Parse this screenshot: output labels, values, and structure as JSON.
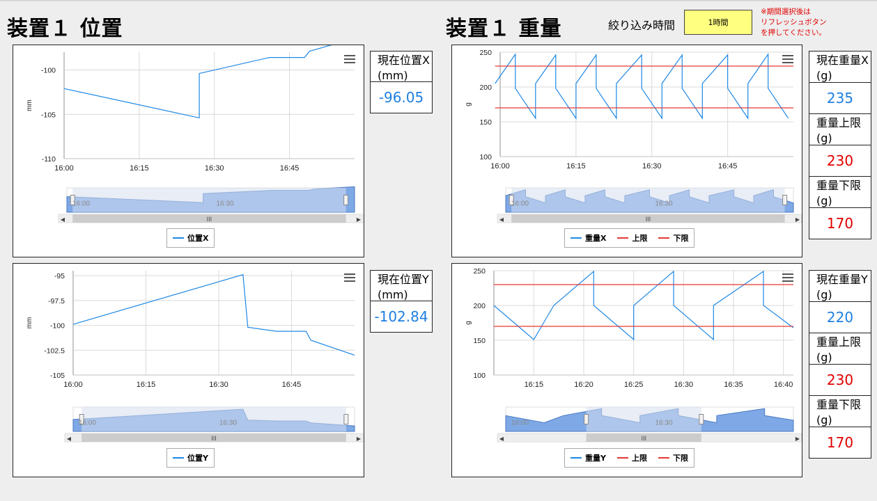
{
  "header": {
    "position_title": "装置１ 位置",
    "weight_title": "装置１ 重量",
    "filter_label": "絞り込み時間",
    "filter_value": "1時間",
    "note": "※期間選択後は\nリフレッシュボタン\nを押してください。"
  },
  "cards": {
    "pos_x": {
      "label": "現在位置X\n(mm)",
      "value": "-96.05"
    },
    "pos_y": {
      "label": "現在位置Y\n(mm)",
      "value": "-102.84"
    },
    "weight_x": {
      "label": "現在重量X\n(g)",
      "value": "235",
      "upper_label": "重量上限\n(g)",
      "upper_value": "230",
      "lower_label": "重量下限\n(g)",
      "lower_value": "170"
    },
    "weight_y": {
      "label": "現在重量Y\n(g)",
      "value": "220",
      "upper_label": "重量上限\n(g)",
      "upper_value": "230",
      "lower_label": "重量下限\n(g)",
      "lower_value": "170"
    }
  },
  "legend": {
    "pos_x": "位置X",
    "pos_y": "位置Y",
    "weight_x": "重量X",
    "weight_y": "重量Y",
    "upper": "上限",
    "lower": "下限"
  },
  "colors": {
    "series": "#1e88e5",
    "limit": "#e53935",
    "navigator_fill": "#7ea9e6",
    "navigator_mask": "#d5deef",
    "value_blue": "#1e7fe0",
    "value_red": "#e00000"
  },
  "chart_data": [
    {
      "id": "pos_x",
      "type": "line",
      "ylabel": "mm",
      "xlim": [
        "16:00",
        "16:58"
      ],
      "ylim": [
        -110,
        -98
      ],
      "x_ticks": [
        "16:00",
        "16:15",
        "16:30",
        "16:45"
      ],
      "y_ticks": [
        -100,
        -105,
        -110
      ],
      "series": [
        {
          "name": "位置X",
          "x": [
            "16:00",
            "16:27",
            "16:27",
            "16:41",
            "16:48",
            "16:49",
            "16:57"
          ],
          "y": [
            -102.1,
            -105.4,
            -100.4,
            -98.6,
            -98.6,
            -97.9,
            -96.6
          ]
        }
      ],
      "navigator": {
        "ticks": [
          "16:00",
          "16:30"
        ]
      }
    },
    {
      "id": "pos_y",
      "type": "line",
      "ylabel": "mm",
      "xlim": [
        "16:00",
        "16:58"
      ],
      "ylim": [
        -105,
        -94.5
      ],
      "x_ticks": [
        "16:00",
        "16:15",
        "16:30",
        "16:45"
      ],
      "y_ticks": [
        -95,
        -97.5,
        -100,
        -102.5,
        -105
      ],
      "series": [
        {
          "name": "位置Y",
          "x": [
            "16:00",
            "16:35",
            "16:36",
            "16:42",
            "16:48",
            "16:49",
            "16:58"
          ],
          "y": [
            -99.9,
            -94.9,
            -100.2,
            -100.6,
            -100.6,
            -101.5,
            -103.0
          ]
        }
      ],
      "navigator": {
        "ticks": [
          "16:00",
          "16:30"
        ]
      }
    },
    {
      "id": "weight_x",
      "type": "line",
      "ylabel": "g",
      "xlim": [
        "16:00",
        "16:58"
      ],
      "ylim": [
        100,
        250
      ],
      "x_ticks": [
        "16:00",
        "16:15",
        "16:30",
        "16:45"
      ],
      "y_ticks": [
        250,
        200,
        150,
        100
      ],
      "series": [
        {
          "name": "重量X",
          "x": [
            "15:59",
            "16:03",
            "16:03",
            "16:07",
            "16:07",
            "16:11",
            "16:11",
            "16:15",
            "16:15",
            "16:19",
            "16:19",
            "16:23",
            "16:23",
            "16:28",
            "16:28",
            "16:32",
            "16:32",
            "16:36",
            "16:36",
            "16:40",
            "16:40",
            "16:45",
            "16:45",
            "16:49",
            "16:49",
            "16:53",
            "16:53",
            "16:57"
          ],
          "y": [
            205,
            247,
            198,
            155,
            205,
            246,
            198,
            155,
            205,
            246,
            198,
            155,
            205,
            246,
            198,
            155,
            205,
            246,
            198,
            155,
            205,
            246,
            198,
            155,
            205,
            247,
            198,
            155
          ]
        },
        {
          "name": "上限",
          "x": [
            "15:59",
            "16:58"
          ],
          "y": [
            230,
            230
          ]
        },
        {
          "name": "下限",
          "x": [
            "15:59",
            "16:58"
          ],
          "y": [
            170,
            170
          ]
        }
      ],
      "navigator": {
        "ticks": [
          "16:00",
          "16:30"
        ]
      }
    },
    {
      "id": "weight_y",
      "type": "line",
      "ylabel": "g",
      "xlim": [
        "16:11",
        "16:41"
      ],
      "ylim": [
        100,
        250
      ],
      "x_ticks": [
        "16:15",
        "16:20",
        "16:25",
        "16:30",
        "16:35",
        "16:40"
      ],
      "y_ticks": [
        250,
        200,
        150,
        100
      ],
      "series": [
        {
          "name": "重量Y",
          "x": [
            "16:11",
            "16:15",
            "16:17",
            "16:21",
            "16:21",
            "16:25",
            "16:25",
            "16:29",
            "16:29",
            "16:33",
            "16:33",
            "16:38",
            "16:38",
            "16:41"
          ],
          "y": [
            200,
            151,
            200,
            249,
            200,
            151,
            200,
            249,
            200,
            151,
            200,
            249,
            200,
            168
          ]
        },
        {
          "name": "上限",
          "x": [
            "16:11",
            "16:41"
          ],
          "y": [
            230,
            230
          ]
        },
        {
          "name": "下限",
          "x": [
            "16:11",
            "16:41"
          ],
          "y": [
            170,
            170
          ]
        }
      ],
      "navigator": {
        "ticks": [
          "16:00",
          "16:30"
        ]
      }
    }
  ]
}
